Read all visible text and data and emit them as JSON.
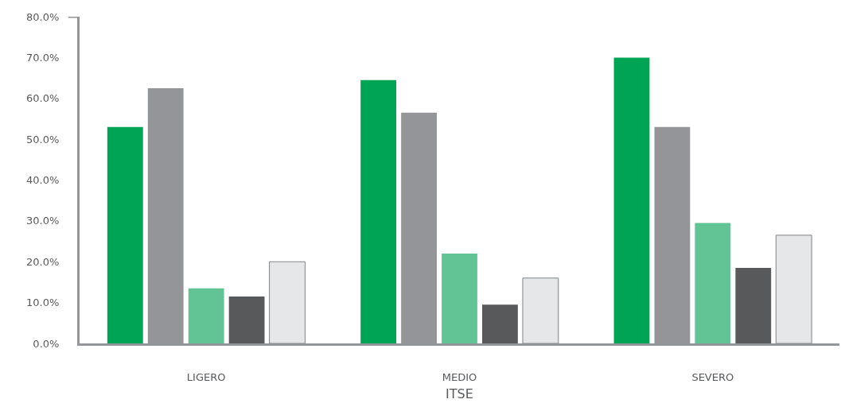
{
  "chart_data": {
    "type": "bar",
    "xlabel": "ITSE",
    "categories": [
      "LIGERO",
      "MEDIO",
      "SEVERO"
    ],
    "series": [
      {
        "color": "#00a455",
        "values": [
          53.0,
          64.5,
          70.0
        ]
      },
      {
        "color": "#939598",
        "values": [
          62.5,
          56.5,
          53.0
        ]
      },
      {
        "color": "#62c394",
        "values": [
          13.5,
          22.0,
          29.5
        ]
      },
      {
        "color": "#58595b",
        "values": [
          11.5,
          9.5,
          18.5
        ]
      },
      {
        "color": "#e6e7e8",
        "values": [
          20.0,
          16.0,
          26.5
        ]
      }
    ],
    "ylim": [
      0,
      80
    ],
    "yticks": [
      {
        "value": 0,
        "label": "0.0%"
      },
      {
        "value": 10,
        "label": "10.0%"
      },
      {
        "value": 20,
        "label": "20.0%"
      },
      {
        "value": 30,
        "label": "30.0%"
      },
      {
        "value": 40,
        "label": "40.0%"
      },
      {
        "value": 50,
        "label": "50.0%"
      },
      {
        "value": 60,
        "label": "60.0%"
      },
      {
        "value": 70,
        "label": "70.0%"
      },
      {
        "value": 80,
        "label": "80.0%"
      }
    ]
  }
}
